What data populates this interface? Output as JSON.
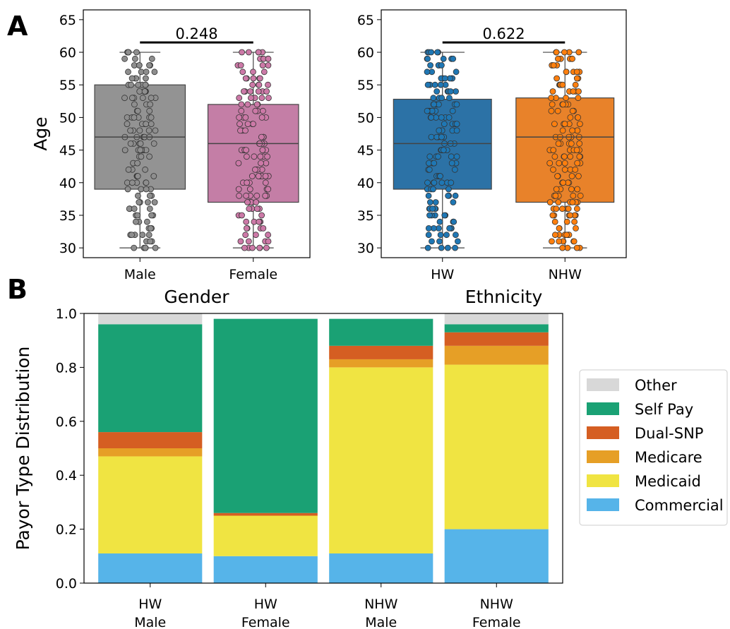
{
  "panels": {
    "a": "A",
    "b": "B"
  },
  "chart_data": [
    {
      "type": "box",
      "panel": "A",
      "xlabel": "Gender",
      "ylabel": "Age",
      "ylim": [
        28.5,
        66.5
      ],
      "yticks": [
        30,
        35,
        40,
        45,
        50,
        55,
        60,
        65
      ],
      "categories": [
        "Male",
        "Female"
      ],
      "colors": [
        "#939393",
        "#c47ea6"
      ],
      "point_colors": [
        "#8e8e8e",
        "#cc79a7"
      ],
      "boxes": [
        {
          "whisker_low": 30,
          "q1": 39,
          "median": 47,
          "q3": 55,
          "whisker_high": 60
        },
        {
          "whisker_low": 30,
          "q1": 37,
          "median": 46,
          "q3": 52,
          "whisker_high": 60
        }
      ],
      "pvalue": "0.248"
    },
    {
      "type": "box",
      "panel": "A",
      "xlabel": "Ethnicity",
      "ylabel": "",
      "ylim": [
        28.5,
        66.5
      ],
      "yticks": [
        30,
        35,
        40,
        45,
        50,
        55,
        60,
        65
      ],
      "categories": [
        "HW",
        "NHW"
      ],
      "colors": [
        "#2c72a6",
        "#e8822a"
      ],
      "point_colors": [
        "#1f77b4",
        "#ff7f0e"
      ],
      "boxes": [
        {
          "whisker_low": 30,
          "q1": 39,
          "median": 46,
          "q3": 52.8,
          "whisker_high": 60
        },
        {
          "whisker_low": 30,
          "q1": 37,
          "median": 47,
          "q3": 53,
          "whisker_high": 60
        }
      ],
      "pvalue": "0.622"
    },
    {
      "type": "stacked_bar",
      "panel": "B",
      "ylabel": "Payor Type Distribution",
      "ylim": [
        0,
        1.0
      ],
      "yticks": [
        "0.0",
        "0.2",
        "0.4",
        "0.6",
        "0.8",
        "1.0"
      ],
      "categories": [
        [
          "HW",
          "Male"
        ],
        [
          "HW",
          "Female"
        ],
        [
          "NHW",
          "Male"
        ],
        [
          "NHW",
          "Female"
        ]
      ],
      "legend_position": "right",
      "series": [
        {
          "name": "Commercial",
          "color": "#56b4e9",
          "values": [
            0.11,
            0.1,
            0.11,
            0.2
          ]
        },
        {
          "name": "Medicaid",
          "color": "#f0e442",
          "values": [
            0.36,
            0.15,
            0.69,
            0.61
          ]
        },
        {
          "name": "Medicare",
          "color": "#e69f26",
          "values": [
            0.03,
            0.0,
            0.03,
            0.07
          ]
        },
        {
          "name": "Dual-SNP",
          "color": "#d55e22",
          "values": [
            0.06,
            0.01,
            0.05,
            0.05
          ]
        },
        {
          "name": "Self Pay",
          "color": "#1aa174",
          "values": [
            0.4,
            0.72,
            0.1,
            0.03
          ]
        },
        {
          "name": "Other",
          "color": "#d8d8d8",
          "values": [
            0.04,
            0.0,
            0.0,
            0.04
          ]
        }
      ]
    }
  ]
}
